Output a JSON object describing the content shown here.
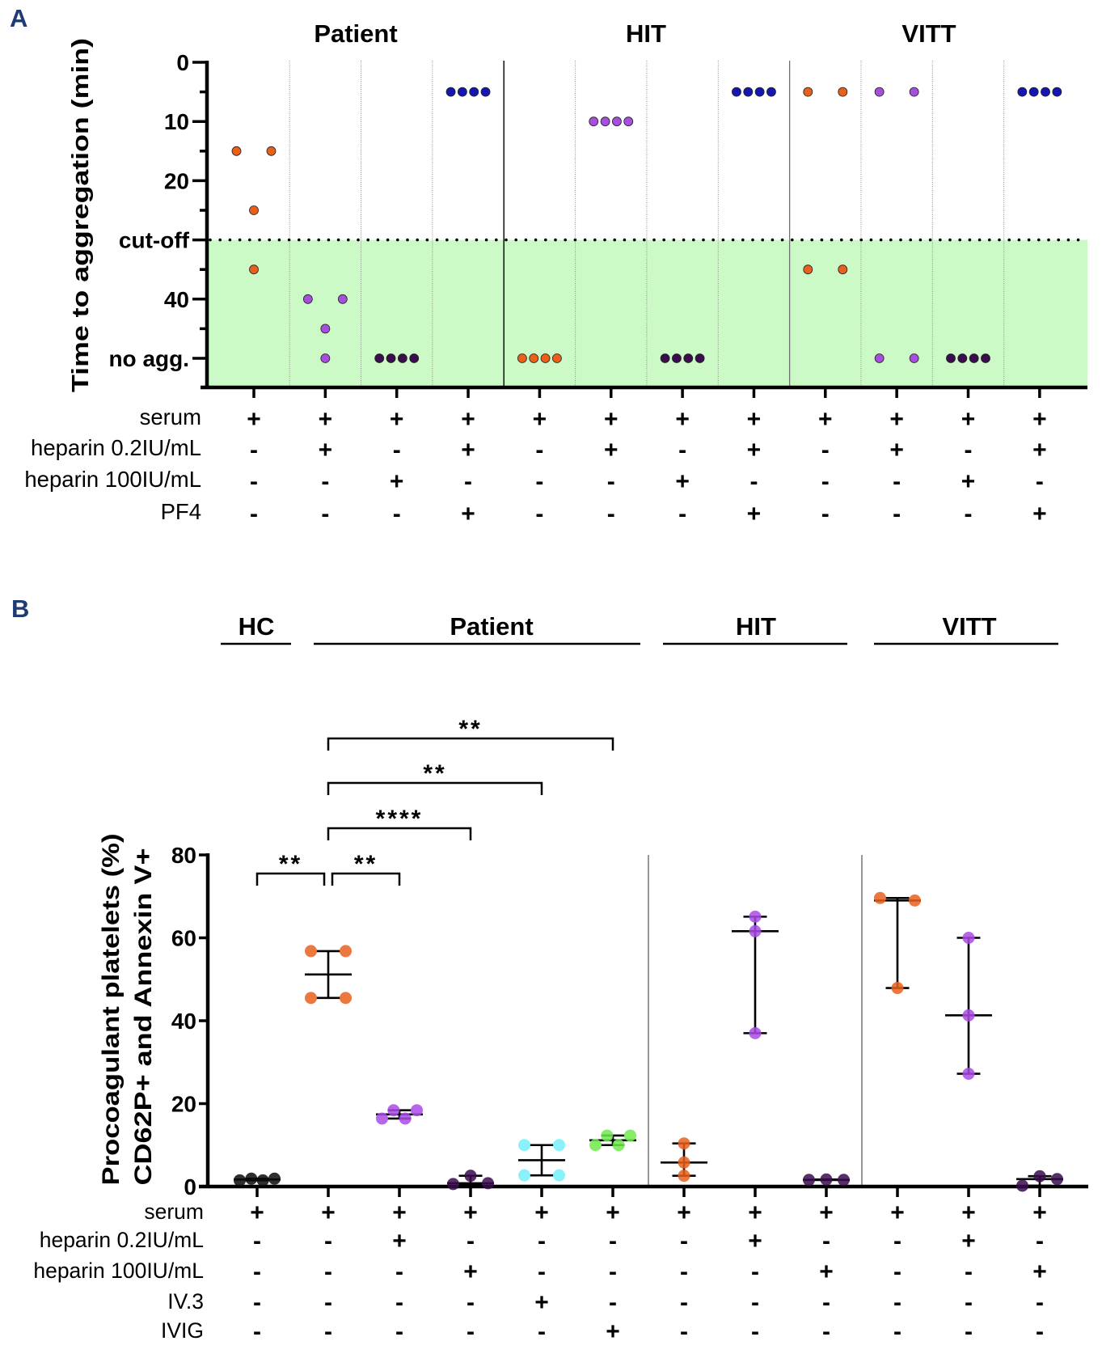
{
  "chart_data": [
    {
      "panel": "A",
      "type": "scatter",
      "title": "",
      "xlabel": "",
      "ylabel": "Time to aggregation (min)",
      "grid": false,
      "legend": "none",
      "y_axis": {
        "range": [
          0,
          50
        ],
        "inverted": true,
        "ticks": [
          {
            "value": 0,
            "label": "0"
          },
          {
            "value": 10,
            "label": "10"
          },
          {
            "value": 20,
            "label": "20"
          },
          {
            "value": 30,
            "label": "cut-off"
          },
          {
            "value": 40,
            "label": "40"
          },
          {
            "value": 50,
            "label": "no agg."
          }
        ],
        "minor_ticks": [
          5,
          15,
          25,
          35,
          45
        ]
      },
      "cutoff": {
        "value": 30,
        "style": "dotted",
        "shaded_region": "below cut-off (no aggregation zone)",
        "shade_color": "#ccfac6"
      },
      "groups": [
        {
          "name": "Patient",
          "first_column": 0,
          "last_column": 3
        },
        {
          "name": "HIT",
          "first_column": 4,
          "last_column": 7
        },
        {
          "name": "VITT",
          "first_column": 8,
          "last_column": 11
        }
      ],
      "columns": [
        {
          "group": "Patient",
          "color": "#e8601c",
          "values": [
            15,
            15,
            25,
            35
          ]
        },
        {
          "group": "Patient",
          "color": "#a64fdc",
          "values": [
            40,
            40,
            45,
            50
          ]
        },
        {
          "group": "Patient",
          "color": "#3a0e4d",
          "values": [
            50,
            50,
            50,
            50
          ]
        },
        {
          "group": "Patient",
          "color": "#1616b3",
          "values": [
            5,
            5,
            5,
            5
          ]
        },
        {
          "group": "HIT",
          "color": "#e8601c",
          "values": [
            50,
            50,
            50,
            50
          ]
        },
        {
          "group": "HIT",
          "color": "#a64fdc",
          "values": [
            10,
            10,
            10,
            10
          ]
        },
        {
          "group": "HIT",
          "color": "#3a0e4d",
          "values": [
            50,
            50,
            50,
            50
          ]
        },
        {
          "group": "HIT",
          "color": "#1616b3",
          "values": [
            5,
            5,
            5,
            5
          ]
        },
        {
          "group": "VITT",
          "color": "#e8601c",
          "values": [
            5,
            5,
            35,
            35
          ]
        },
        {
          "group": "VITT",
          "color": "#a64fdc",
          "values": [
            5,
            5,
            50,
            50
          ]
        },
        {
          "group": "VITT",
          "color": "#3a0e4d",
          "values": [
            50,
            50,
            50,
            50
          ]
        },
        {
          "group": "VITT",
          "color": "#1616b3",
          "values": [
            5,
            5,
            5,
            5
          ]
        }
      ],
      "condition_rows": [
        {
          "label": "serum",
          "values": [
            "+",
            "+",
            "+",
            "+",
            "+",
            "+",
            "+",
            "+",
            "+",
            "+",
            "+",
            "+"
          ]
        },
        {
          "label": "heparin 0.2IU/mL",
          "values": [
            "-",
            "+",
            "-",
            "+",
            "-",
            "+",
            "-",
            "+",
            "-",
            "+",
            "-",
            "+"
          ]
        },
        {
          "label": "heparin 100IU/mL",
          "values": [
            "-",
            "-",
            "+",
            "-",
            "-",
            "-",
            "+",
            "-",
            "-",
            "-",
            "+",
            "-"
          ]
        },
        {
          "label": "PF4",
          "values": [
            "-",
            "-",
            "-",
            "+",
            "-",
            "-",
            "-",
            "+",
            "-",
            "-",
            "-",
            "+"
          ]
        }
      ]
    },
    {
      "panel": "B",
      "type": "scatter",
      "title": "",
      "xlabel": "",
      "ylabel": [
        "Procoagulant platelets (%)",
        "CD62P+ and Annexin V+"
      ],
      "summary": "median with range",
      "grid": false,
      "legend": "none",
      "y_axis": {
        "range": [
          0,
          80
        ],
        "ticks": [
          {
            "value": 0,
            "label": "0"
          },
          {
            "value": 20,
            "label": "20"
          },
          {
            "value": 40,
            "label": "40"
          },
          {
            "value": 60,
            "label": "60"
          },
          {
            "value": 80,
            "label": "80"
          }
        ]
      },
      "groups": [
        {
          "name": "HC",
          "first_column": 0,
          "last_column": 0
        },
        {
          "name": "Patient",
          "first_column": 1,
          "last_column": 5
        },
        {
          "name": "HIT",
          "first_column": 6,
          "last_column": 8
        },
        {
          "name": "VITT",
          "first_column": 9,
          "last_column": 11
        }
      ],
      "columns": [
        {
          "group": "HC",
          "color": "#0a0a0a",
          "values": [
            1.5,
            1.9,
            1.5,
            1.9
          ]
        },
        {
          "group": "Patient",
          "color": "#e8601c",
          "values": [
            56.8,
            56.8,
            45.5,
            45.5
          ]
        },
        {
          "group": "Patient",
          "color": "#a94be4",
          "values": [
            16.4,
            18.4,
            16.4,
            18.4
          ]
        },
        {
          "group": "Patient",
          "color": "#3b0c4d",
          "values": [
            0.6,
            2.6,
            0.8
          ]
        },
        {
          "group": "Patient",
          "color": "#73eef9",
          "values": [
            10.0,
            10.0,
            2.7,
            2.7
          ]
        },
        {
          "group": "Patient",
          "color": "#6ee94b",
          "values": [
            10.0,
            12.3,
            10.0,
            12.3
          ]
        },
        {
          "group": "HIT",
          "color": "#e8601c",
          "values": [
            10.4,
            5.8,
            2.6
          ]
        },
        {
          "group": "HIT",
          "color": "#a94be4",
          "values": [
            65.1,
            61.6,
            37.0
          ]
        },
        {
          "group": "HIT",
          "color": "#3b0c4d",
          "values": [
            1.6,
            1.7,
            1.6
          ]
        },
        {
          "group": "VITT",
          "color": "#e8601c",
          "values": [
            69.6,
            69.0,
            47.9
          ]
        },
        {
          "group": "VITT",
          "color": "#a94be4",
          "values": [
            60.0,
            41.3,
            27.2
          ]
        },
        {
          "group": "VITT",
          "color": "#3b0c4d",
          "values": [
            0.2,
            2.5,
            1.8
          ]
        }
      ],
      "comparisons": [
        {
          "from": 0,
          "to": 1,
          "label": "**"
        },
        {
          "from": 1,
          "to": 2,
          "label": "**"
        },
        {
          "from": 1,
          "to": 3,
          "label": "****"
        },
        {
          "from": 1,
          "to": 4,
          "label": "**"
        },
        {
          "from": 1,
          "to": 5,
          "label": "**"
        }
      ],
      "condition_rows": [
        {
          "label": "serum",
          "values": [
            "+",
            "+",
            "+",
            "+",
            "+",
            "+",
            "+",
            "+",
            "+",
            "+",
            "+",
            "+"
          ]
        },
        {
          "label": "heparin 0.2IU/mL",
          "values": [
            "-",
            "-",
            "+",
            "-",
            "-",
            "-",
            "-",
            "+",
            "-",
            "-",
            "+",
            "-"
          ]
        },
        {
          "label": "heparin 100IU/mL",
          "values": [
            "-",
            "-",
            "-",
            "+",
            "-",
            "-",
            "-",
            "-",
            "+",
            "-",
            "-",
            "+"
          ]
        },
        {
          "label": "IV.3",
          "values": [
            "-",
            "-",
            "-",
            "-",
            "+",
            "-",
            "-",
            "-",
            "-",
            "-",
            "-",
            "-"
          ]
        },
        {
          "label": "IVIG",
          "values": [
            "-",
            "-",
            "-",
            "-",
            "-",
            "+",
            "-",
            "-",
            "-",
            "-",
            "-",
            "-"
          ]
        }
      ]
    }
  ]
}
